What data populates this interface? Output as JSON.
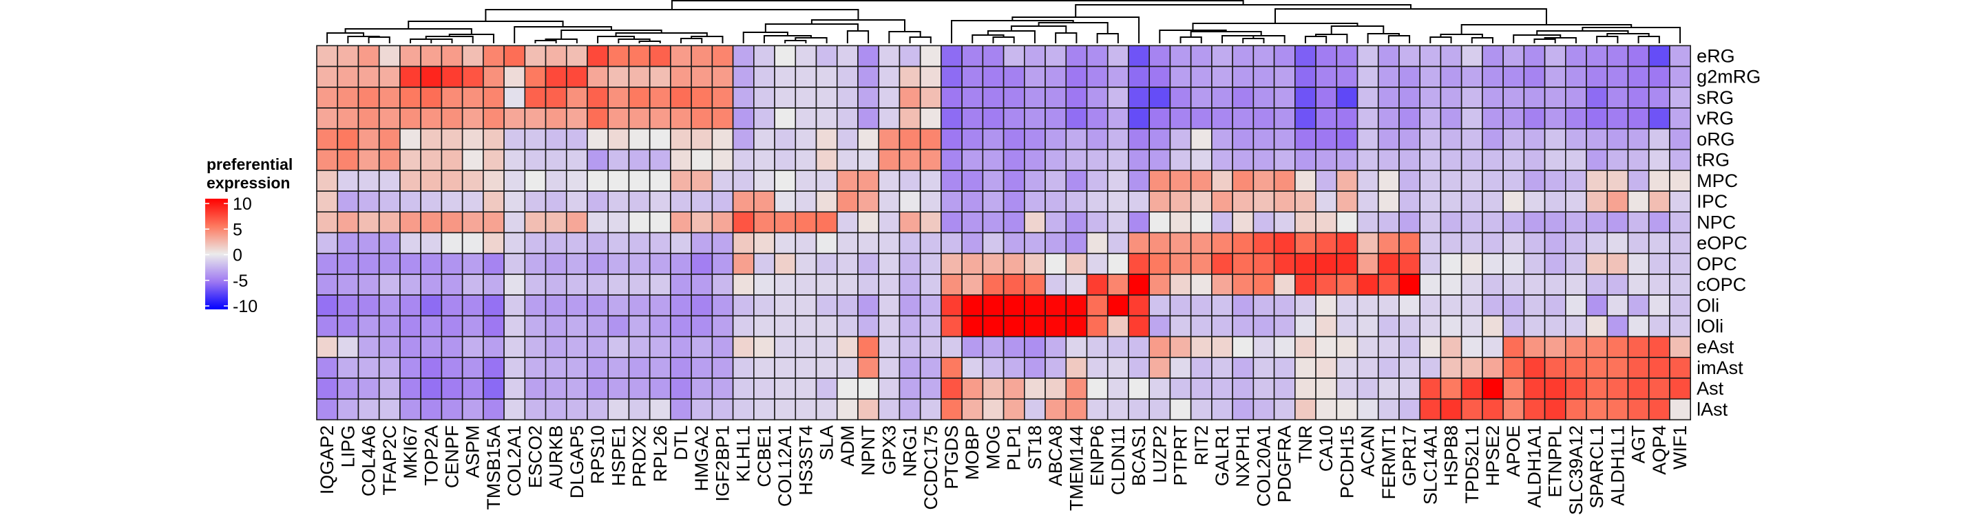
{
  "chart_data": {
    "type": "heatmap",
    "rows": [
      "eRG",
      "g2mRG",
      "sRG",
      "vRG",
      "oRG",
      "tRG",
      "MPC",
      "IPC",
      "NPC",
      "eOPC",
      "OPC",
      "cOPC",
      "Oli",
      "lOli",
      "eAst",
      "imAst",
      "Ast",
      "lAst"
    ],
    "columns": [
      "IQGAP2",
      "LIPG",
      "COL4A6",
      "TFAP2C",
      "MKI67",
      "TOP2A",
      "CENPF",
      "ASPM",
      "TMSB15A",
      "COL2A1",
      "ESCO2",
      "AURKB",
      "DLGAP5",
      "RPS10",
      "HSPE1",
      "PRDX2",
      "RPL26",
      "DTL",
      "HMGA2",
      "IGF2BP1",
      "KLHL1",
      "CCBE1",
      "COL12A1",
      "HS3ST4",
      "SLA",
      "ADM",
      "NPNT",
      "GPX3",
      "NRG1",
      "CCDC175",
      "PTGDS",
      "MOBP",
      "MOG",
      "PLP1",
      "ST18",
      "ABCA8",
      "TMEM144",
      "ENPP6",
      "CLDN11",
      "BCAS1",
      "LUZP2",
      "PTPRT",
      "RIT2",
      "GALR1",
      "NXPH1",
      "COL20A1",
      "PDGFRA",
      "TNR",
      "CA10",
      "PCDH15",
      "ACAN",
      "FERMT1",
      "GPR17",
      "SLC14A1",
      "HSPB8",
      "TPD52L1",
      "HPSE2",
      "APOE",
      "ALDH1A1",
      "ETNPPL",
      "SLC39A12",
      "SPARCL1",
      "ALDH1L1",
      "AGT",
      "AQP4",
      "WIF1"
    ],
    "values": [
      [
        2,
        2.5,
        3.5,
        0.8,
        3,
        3.2,
        3.5,
        2,
        4.5,
        5.5,
        2,
        2.5,
        2,
        7,
        5,
        5,
        6,
        3.5,
        4,
        4.5,
        -3,
        -1.5,
        0,
        -1,
        -2,
        -1.2,
        -4,
        -1.2,
        -2,
        0.2,
        -5.5,
        -4.5,
        -4.5,
        -2.2,
        -3,
        -2.5,
        -4.5,
        -4,
        -2.2,
        -6.5,
        -4.5,
        -3.5,
        -3.5,
        -2.8,
        -3.5,
        -3.3,
        -4,
        -6,
        -4.8,
        -4.5,
        -1.8,
        -3.5,
        -2.5,
        -2.5,
        -2.8,
        -1.3,
        -3.8,
        -3,
        -4,
        -2.5,
        -4,
        -4.2,
        -4.5,
        -5,
        -6.8,
        -3
      ],
      [
        2.5,
        3,
        3,
        2.7,
        7.5,
        8.5,
        7.5,
        6.5,
        4,
        0.7,
        5,
        7,
        7,
        3,
        2,
        2.3,
        2,
        3.5,
        3.5,
        3.5,
        -3,
        -1.5,
        -1,
        -1,
        -1,
        -1.5,
        -3.5,
        -1.2,
        1.5,
        0.7,
        -5.5,
        -4.5,
        -4.7,
        -4.6,
        -3.2,
        -3.6,
        -5,
        -4.3,
        -3.2,
        -5.5,
        -5,
        -3.3,
        -3.3,
        -3,
        -3.5,
        -3.5,
        -3.2,
        -5.5,
        -4.5,
        -4.5,
        -1.8,
        -3.3,
        -3.8,
        -2.7,
        -3.5,
        -3,
        -3.8,
        -4,
        -4.5,
        -3,
        -3.8,
        -4.5,
        -4.4,
        -4.8,
        -5,
        -3.2
      ],
      [
        3.5,
        4,
        4.5,
        4,
        5,
        5.5,
        4.2,
        4,
        4.5,
        -0.5,
        6,
        6,
        4,
        6,
        4,
        5,
        4.5,
        5.5,
        5,
        4.5,
        -2.8,
        -1.5,
        -1,
        -1,
        -1,
        -1.5,
        -3,
        -1.2,
        3.5,
        2,
        -5,
        -4.5,
        -4.6,
        -4.5,
        -3.8,
        -3.9,
        -5,
        -3.7,
        -2.2,
        -6.5,
        -6.8,
        -4.5,
        -3.5,
        -3.8,
        -4.6,
        -3.8,
        -3.4,
        -6.5,
        -5,
        -7,
        -2,
        -3.5,
        -3.8,
        -2.8,
        -3,
        -2.2,
        -3.3,
        -3.2,
        -3.5,
        -3.2,
        -3.6,
        -5.5,
        -4.2,
        -4.7,
        -4.2,
        -2.5
      ],
      [
        3,
        3.5,
        4,
        3.5,
        4,
        3.8,
        4,
        3.2,
        4.2,
        3,
        3,
        3.5,
        3,
        5.5,
        3.5,
        3.5,
        3.5,
        3.8,
        4.5,
        4.5,
        -3.5,
        -1.8,
        0,
        -1,
        -1,
        -1.5,
        -3.6,
        -1.2,
        2,
        0.3,
        -5.5,
        -4.6,
        -4.8,
        -4.2,
        -3.8,
        -4,
        -5.4,
        -4.3,
        -3,
        -6.8,
        -5,
        -4.5,
        -4.5,
        -4.3,
        -4.1,
        -4.3,
        -3.8,
        -6.5,
        -4.8,
        -5,
        -2,
        -3.4,
        -4.1,
        -2.5,
        -3.5,
        -1.8,
        -3.6,
        -3.6,
        -4.6,
        -3.6,
        -4.5,
        -5.2,
        -4.8,
        -5,
        -6.5,
        -3
      ],
      [
        4.5,
        5,
        3.5,
        4.2,
        0.3,
        1.5,
        1.5,
        0.8,
        1.5,
        -1.6,
        -1.6,
        -2,
        -2,
        0.2,
        0.8,
        0.1,
        0,
        1.2,
        1.2,
        0.5,
        -3,
        -1,
        -1.5,
        -1,
        0.7,
        -1.5,
        0.3,
        4,
        4.5,
        4.5,
        -5,
        -4.4,
        -3.8,
        -4.6,
        -4.1,
        -3.3,
        -2.8,
        -3.4,
        -2.4,
        -4.6,
        -4,
        -2.2,
        0.2,
        -3,
        -3.7,
        -3.5,
        -3.3,
        -5,
        -5,
        -5.2,
        -1.8,
        -3.2,
        -3.2,
        -2,
        -2.4,
        -2,
        -3.3,
        -2.3,
        -2.6,
        -1.8,
        -2.7,
        -3,
        -3.3,
        -3,
        -1.6,
        -3.2
      ],
      [
        4,
        4.5,
        3.2,
        3.8,
        1.5,
        1.8,
        2,
        0.2,
        1.5,
        -1,
        -1.5,
        -1.5,
        -1.3,
        -3.5,
        -2,
        -2.5,
        -2.5,
        0.6,
        0.1,
        0.4,
        -1.3,
        -1,
        -1.3,
        -1,
        1,
        -1,
        -0.8,
        4,
        3.8,
        3.8,
        -4.4,
        -3.4,
        -3.3,
        -4.3,
        -3.6,
        -2.8,
        -2.4,
        -2.2,
        -1.8,
        -3.7,
        -3.4,
        -1.7,
        -1,
        -2.6,
        -3,
        -3,
        -2.5,
        -3.5,
        -3.2,
        -3,
        -1.8,
        -2.2,
        -2.4,
        -1.8,
        -2,
        -2,
        -2,
        -1.8,
        -2.2,
        -1.5,
        -1.5,
        -3.3,
        -2.4,
        -2.2,
        -1.2,
        -2.5
      ],
      [
        1.5,
        -1.2,
        -1.2,
        -1.2,
        1.8,
        2,
        2,
        1.5,
        0.8,
        -0.8,
        0,
        -1,
        -0.6,
        0,
        0,
        0,
        0,
        2.5,
        2.5,
        -1.3,
        -1.5,
        -0.6,
        0,
        -1,
        -1,
        3.5,
        3.5,
        -1,
        -1.5,
        -1.1,
        -4.2,
        -4.2,
        -3.1,
        -4.3,
        -2.9,
        -2.2,
        -4,
        -2.1,
        -1.2,
        -3.8,
        4,
        3.8,
        3.8,
        1.3,
        4.2,
        3.2,
        4,
        0.5,
        -2.3,
        2.5,
        -1.3,
        0.3,
        -2.4,
        -1.6,
        -1.6,
        -1.5,
        -1.8,
        -1.8,
        -3,
        -2.5,
        -2.2,
        1.2,
        1.2,
        -2.4,
        0.5,
        0.5
      ],
      [
        1.5,
        -3,
        -2.5,
        -2,
        -1.8,
        -1.6,
        -1.3,
        -1.2,
        1.5,
        -0.8,
        -1.7,
        -2,
        -1.2,
        -2.3,
        -1.5,
        -1.7,
        -1.2,
        -1.7,
        -1.8,
        -2,
        3.5,
        3.5,
        -0.5,
        -1,
        0.6,
        4,
        3,
        -1,
        -0.2,
        -1,
        -3.3,
        -3.6,
        -2.8,
        -4,
        -2.5,
        -2.4,
        -2,
        -1.3,
        -1,
        -1.3,
        2.8,
        2.3,
        1.2,
        3.2,
        2.2,
        1.8,
        2.5,
        2,
        -1,
        2.5,
        -1.2,
        0.3,
        -2,
        -1.4,
        -1.4,
        -1.6,
        -1.5,
        0.3,
        -1,
        -1.5,
        -1.2,
        1.8,
        3.2,
        0.3,
        2,
        -1.2
      ],
      [
        2,
        3,
        2,
        2.3,
        3.5,
        3.7,
        3.7,
        3,
        3.2,
        -1,
        2,
        2,
        3,
        -0.8,
        -0.8,
        0,
        0,
        3,
        2,
        3,
        6.5,
        4.5,
        4.5,
        5,
        5.2,
        -1.2,
        0.4,
        -1.2,
        3,
        1.5,
        -4.1,
        -3.6,
        -3.5,
        -4,
        1,
        -2.5,
        -3.8,
        -2.2,
        -1.3,
        -4.2,
        0,
        0.5,
        0,
        -2,
        0.7,
        -2,
        -1.2,
        1.2,
        1,
        0,
        -1.6,
        -2,
        -3,
        -1.6,
        -2.4,
        -2,
        -2,
        -2.5,
        -3.2,
        -3.1,
        -2.6,
        -3,
        -3.4,
        -2.2,
        -3.3,
        -2
      ],
      [
        -2,
        -3.5,
        -3.5,
        -3.3,
        -1.1,
        -1.1,
        -0.1,
        -0.1,
        1,
        -1.1,
        -2,
        -2.2,
        -2,
        -2.4,
        -1.8,
        -2,
        -1.9,
        -1.4,
        -3,
        -3,
        1.5,
        0.8,
        -0.8,
        -1,
        -0.1,
        -1,
        -1,
        -1.1,
        -1.8,
        -1.8,
        -2,
        -3.2,
        -1.6,
        -3,
        -2.7,
        -3.1,
        -3.8,
        0.4,
        -1.6,
        4,
        4,
        3.6,
        3.8,
        4.5,
        5.3,
        6.5,
        7.5,
        5.5,
        6.3,
        7.2,
        2,
        4.5,
        5.2,
        -1.5,
        -1.7,
        -1.6,
        -1.9,
        -1.2,
        -2,
        -2.6,
        -2,
        -1.4,
        -0.8,
        -1.6,
        -1.4,
        -1.7
      ],
      [
        -4,
        -4,
        -4,
        -3.8,
        -4,
        -4,
        -3.8,
        -3.3,
        -4.5,
        -1.6,
        -2.8,
        -3.2,
        -2.7,
        -3.4,
        -2.7,
        -2.6,
        -3,
        -3.5,
        -4.7,
        -3.5,
        3.3,
        -1.5,
        1.2,
        -1,
        -1.6,
        -1.2,
        -2.3,
        -1.1,
        -2.3,
        -1.6,
        2.3,
        2.8,
        2.5,
        2.8,
        1.5,
        0,
        1.5,
        -1,
        0,
        6.8,
        5,
        4.2,
        4.3,
        6.8,
        5.5,
        5.8,
        7.5,
        8,
        8.2,
        8,
        3.3,
        7.6,
        7,
        -1.4,
        -0.1,
        0.3,
        -0.5,
        -0.5,
        -1.6,
        -2.5,
        -1.7,
        1.5,
        1.8,
        -0.6,
        -1.6,
        -1.6
      ],
      [
        -3.7,
        -3.4,
        -3.2,
        -2.2,
        -2.7,
        -3.4,
        -3.4,
        -2.2,
        -2.8,
        -0.5,
        -2,
        -2.4,
        -2,
        -2,
        -1.6,
        -1.7,
        -1.5,
        -3.5,
        -3.4,
        -2.2,
        0.5,
        -0.5,
        -0.8,
        -1,
        -0.9,
        -1,
        -1.5,
        -1.2,
        -2.5,
        -1.5,
        4,
        2.7,
        5.5,
        6,
        5.3,
        -1.5,
        -0.8,
        7.5,
        4.5,
        10,
        4,
        1,
        0.3,
        3,
        4.5,
        5,
        0.9,
        7.4,
        6.3,
        5.5,
        8,
        6.5,
        10,
        -0.3,
        -0.3,
        -0.9,
        -1.7,
        -1.3,
        -1.2,
        -1.3,
        -1,
        -2,
        -2.2,
        -0.8,
        -1.2,
        -1.4
      ],
      [
        -5.3,
        -4.5,
        -4.4,
        -3.7,
        -4.3,
        -5.5,
        -4.3,
        -4.2,
        -5.3,
        -1.5,
        -3.3,
        -3.5,
        -3.4,
        -3.5,
        -2.9,
        -3.2,
        -3.2,
        -4,
        -4.5,
        -3.5,
        -2,
        -1.4,
        -1,
        -1,
        -1.8,
        -2,
        -3.4,
        -1.2,
        -3.2,
        -2.5,
        7.5,
        10,
        10,
        10,
        9.8,
        9.8,
        9.8,
        5.5,
        10,
        7.5,
        -1.8,
        -2,
        -2,
        -1.8,
        -3,
        -2.2,
        -2.2,
        -1.3,
        0.3,
        -1.1,
        -1,
        -1,
        -0.4,
        -1.2,
        -1.1,
        -1.2,
        -2.3,
        -2.5,
        -1.6,
        -2.1,
        -0.5,
        -3.8,
        -0.8,
        -2.7,
        -0.6,
        -1.7
      ],
      [
        -4.4,
        -4.2,
        -3.5,
        -3.7,
        -4.3,
        -4,
        -4.3,
        -3.7,
        -5,
        -1.3,
        -2.7,
        -3.1,
        -2.7,
        -3.1,
        -3.8,
        -2.7,
        -3.3,
        -4,
        -4,
        -3.2,
        -1.3,
        -0.9,
        -1,
        -1,
        -1,
        -1.4,
        -2.5,
        -1.2,
        -2.5,
        -2,
        6.5,
        10,
        10,
        10,
        9.8,
        9.8,
        9.8,
        5.5,
        1.5,
        7.5,
        -3,
        -1.5,
        -1.8,
        -2,
        -2.5,
        -2.7,
        -2.3,
        -0.5,
        0.8,
        -1.1,
        -0.8,
        -1.8,
        -1.5,
        -1,
        -0.5,
        -0.8,
        0.6,
        -2,
        -1.4,
        -1.5,
        -1.3,
        0.5,
        -3.5,
        -0.5,
        -1.5,
        -1.5
      ],
      [
        1,
        -0.9,
        -2.9,
        -3.2,
        -3.9,
        -3.7,
        -3.7,
        -2.6,
        -3.3,
        -1.3,
        -2.4,
        -2.9,
        -2.6,
        -2.8,
        -1.8,
        -2.4,
        -2.6,
        -3.3,
        -2.7,
        -3.2,
        1,
        0.5,
        -1,
        -1,
        -1,
        0.8,
        5,
        -1.2,
        -2,
        -1.7,
        -1.5,
        -3.5,
        -3,
        -3.7,
        -4,
        -2.6,
        -1,
        -1.5,
        -1.8,
        -2,
        3.5,
        2.5,
        1,
        1,
        0,
        -0.9,
        -0.3,
        1,
        0.2,
        0.4,
        -1,
        -1.2,
        -1.8,
        0.3,
        1.8,
        -0.4,
        -0.8,
        5.5,
        3.8,
        3.3,
        4.2,
        4.5,
        5.2,
        6,
        6.5,
        2
      ],
      [
        -4.2,
        -2.7,
        -2.6,
        -2.6,
        -4,
        -5,
        -4.2,
        -3.8,
        -5.2,
        -1.5,
        -2.6,
        -2.7,
        -2.7,
        -3.3,
        -2.9,
        -3.3,
        -3.1,
        -3.9,
        -3.3,
        -3.2,
        -1.4,
        -1,
        -1,
        -1,
        -1,
        -1,
        4.2,
        -1.2,
        -3,
        -2.8,
        5,
        -1.2,
        -2,
        -2.6,
        -3.4,
        -2.3,
        1.5,
        -1.2,
        -1,
        -2,
        2.7,
        -0.8,
        -2,
        -1.6,
        -2.6,
        -1.5,
        -1.8,
        0.4,
        0.7,
        -1,
        -1.2,
        -1.8,
        -1.3,
        -1.6,
        1.8,
        2,
        3,
        5.5,
        7.3,
        6,
        5.5,
        5.2,
        5.3,
        6.2,
        6.5,
        6.2
      ],
      [
        -4.8,
        -3.6,
        -3.3,
        -2.4,
        -4.5,
        -5.3,
        -4.8,
        -4.2,
        -5.6,
        -1.3,
        -3.2,
        -3,
        -2.8,
        -3.6,
        -3.2,
        -3.2,
        -3.5,
        -4.3,
        -3.1,
        -3,
        -1.4,
        -1.2,
        -1,
        -1,
        -1.8,
        0,
        0,
        -1.2,
        -3,
        -2.8,
        6.5,
        3.5,
        2,
        3,
        0.8,
        1.2,
        4,
        0,
        -0.9,
        0,
        -1.1,
        -1.8,
        -2,
        -2,
        -2.4,
        -1.7,
        -2,
        0.5,
        0.4,
        -1.2,
        -1.6,
        -1,
        -1.2,
        6.8,
        5,
        7.5,
        10,
        4.6,
        7.3,
        7.6,
        6.6,
        5.5,
        5.9,
        6.5,
        6.2,
        6.8
      ],
      [
        -4.1,
        -2.7,
        -2,
        -1.8,
        -3.7,
        -4.2,
        -3.9,
        -3.2,
        -4.3,
        -1.1,
        -2.3,
        -2.5,
        -2.2,
        -2.1,
        -0.9,
        -1.4,
        -0.7,
        -3.6,
        -2.1,
        -2,
        -1.4,
        -1.1,
        -1,
        -1,
        -1,
        0.3,
        1.7,
        -1.5,
        -2.5,
        -1.5,
        5,
        2.5,
        1,
        2.8,
        -1.5,
        3.3,
        3.8,
        -1.2,
        -1.2,
        -1.5,
        -1.5,
        0,
        -1.5,
        -1.8,
        -2.8,
        -2.2,
        -1.6,
        1.5,
        0.3,
        0.2,
        -0.5,
        -1.4,
        -2,
        7.2,
        7.8,
        6.2,
        6.8,
        4.5,
        6.8,
        7.5,
        5.5,
        5,
        5.3,
        6,
        6.5,
        0.3
      ]
    ],
    "legend": {
      "title_line1": "preferential",
      "title_line2": "expression",
      "ticks": [
        "10",
        "5",
        "0",
        "-5",
        "-10"
      ],
      "range": [
        -10,
        10
      ],
      "placement": "left"
    },
    "color_stops": [
      {
        "value": -10,
        "color": "#0000FF"
      },
      {
        "value": -5,
        "color": "#9E78F2"
      },
      {
        "value": 0,
        "color": "#EBEBEB"
      },
      {
        "value": 5,
        "color": "#FD7A60"
      },
      {
        "value": 10,
        "color": "#FF0000"
      }
    ],
    "column_dendrogram": true,
    "grid": true
  }
}
